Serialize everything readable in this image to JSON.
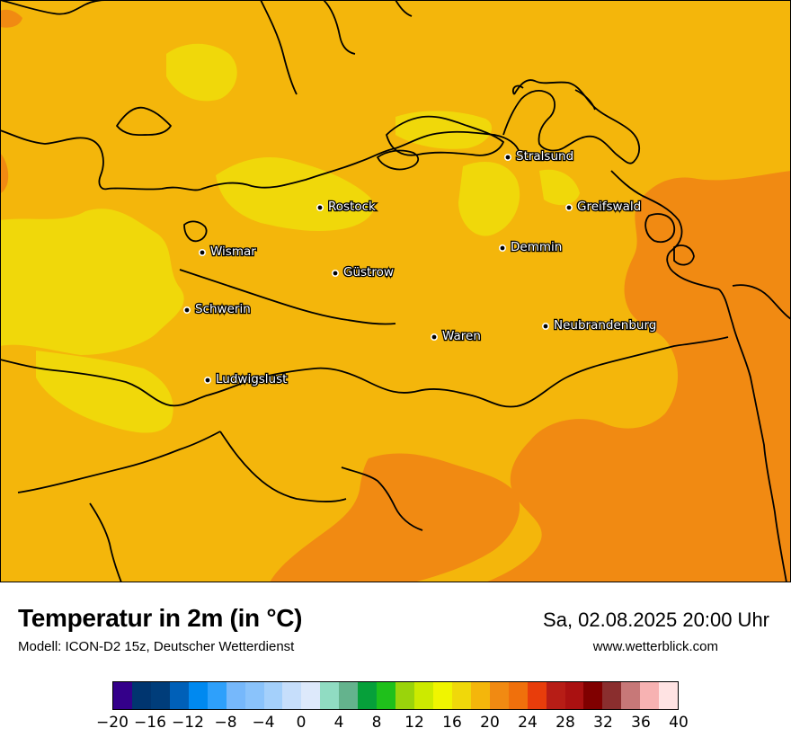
{
  "header": {
    "title": "Temperatur in 2m (in °C)",
    "subtitle": "Modell: ICON-D2 15z, Deutscher Wetterdienst",
    "datetime": "Sa, 02.08.2025 20:00 Uhr",
    "website": "www.wetterblick.com"
  },
  "cities": [
    {
      "name": "Stralsund"
    },
    {
      "name": "Rostock"
    },
    {
      "name": "Greifswald"
    },
    {
      "name": "Demmin"
    },
    {
      "name": "Wismar"
    },
    {
      "name": "Güstrow"
    },
    {
      "name": "Schwerin"
    },
    {
      "name": "Neubrandenburg"
    },
    {
      "name": "Waren"
    },
    {
      "name": "Ludwigslust"
    }
  ],
  "colorbar": {
    "colors": [
      "#34008a",
      "#00356f",
      "#003d7a",
      "#0060b8",
      "#0089f0",
      "#2ea0fb",
      "#76b8fb",
      "#8ac3fb",
      "#a4d0fb",
      "#c6defb",
      "#dde9fb",
      "#90dcc2",
      "#64b38d",
      "#06a03a",
      "#1fc01b",
      "#9ad40b",
      "#ccea00",
      "#f0f500",
      "#f0d80a",
      "#f4b60b",
      "#f18a12",
      "#f0700c",
      "#e83d0b",
      "#b71d16",
      "#aa1111",
      "#800000",
      "#8a2e2e",
      "#c77878",
      "#f7b2b2",
      "#ffe3e3"
    ],
    "tick_labels": [
      "−20",
      "−16",
      "−12",
      "−8",
      "−4",
      "0",
      "4",
      "8",
      "12",
      "16",
      "20",
      "24",
      "28",
      "32",
      "36",
      "40"
    ]
  }
}
